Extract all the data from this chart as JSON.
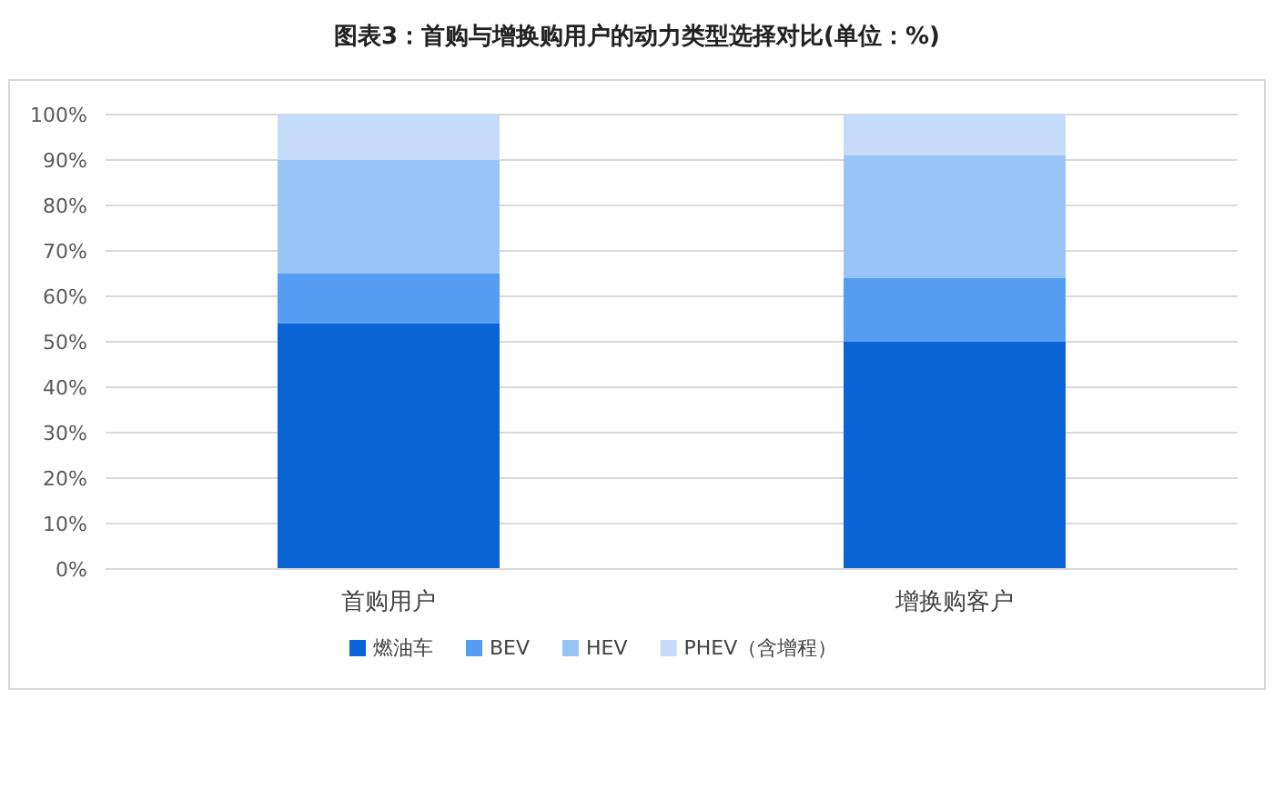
{
  "chart_data": {
    "type": "bar",
    "stacked": true,
    "title": "图表3：首购与增换购用户的动力类型选择对比(单位：%)",
    "categories": [
      "首购用户",
      "增换购客户"
    ],
    "series": [
      {
        "name": "燃油车",
        "color": "#0a64d6",
        "values": [
          54,
          50
        ]
      },
      {
        "name": "BEV",
        "color": "#559df3",
        "values": [
          11,
          14
        ]
      },
      {
        "name": "HEV",
        "color": "#99c4f8",
        "values": [
          25,
          27
        ]
      },
      {
        "name": "PHEV（含增程）",
        "color": "#c4dcfa",
        "values": [
          10,
          9
        ]
      }
    ],
    "ylim": [
      0,
      100
    ],
    "yticks": [
      {
        "value": 0,
        "label": "0%"
      },
      {
        "value": 10,
        "label": "10%"
      },
      {
        "value": 20,
        "label": "20%"
      },
      {
        "value": 30,
        "label": "30%"
      },
      {
        "value": 40,
        "label": "40%"
      },
      {
        "value": 50,
        "label": "50%"
      },
      {
        "value": 60,
        "label": "60%"
      },
      {
        "value": 70,
        "label": "70%"
      },
      {
        "value": 80,
        "label": "80%"
      },
      {
        "value": 90,
        "label": "90%"
      },
      {
        "value": 100,
        "label": "100%"
      }
    ],
    "grid": "y",
    "legend": "bottom"
  }
}
